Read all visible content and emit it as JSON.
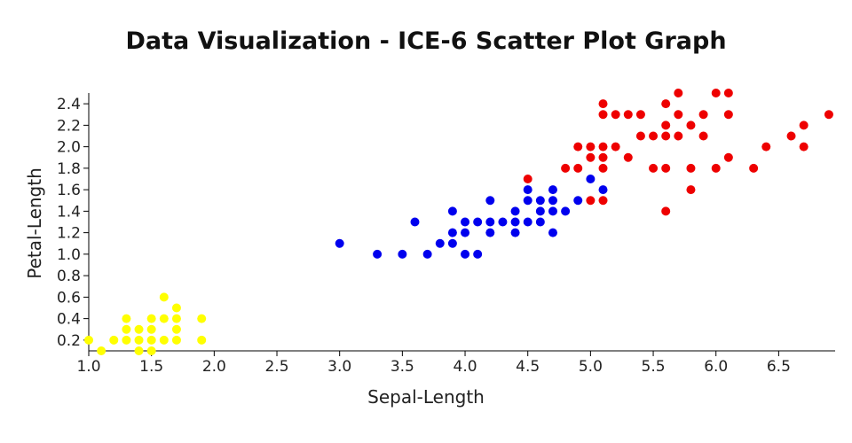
{
  "chart_data": {
    "type": "scatter",
    "title": "Data Visualization - ICE-6 Scatter Plot Graph",
    "xlabel": "Sepal-Length",
    "ylabel": "Petal-Length",
    "xlim": [
      1.0,
      6.95
    ],
    "ylim": [
      0.1,
      2.5
    ],
    "x_ticks": [
      "1.0",
      "1.5",
      "2.0",
      "2.5",
      "3.0",
      "3.5",
      "4.0",
      "4.5",
      "5.0",
      "5.5",
      "6.0",
      "6.5"
    ],
    "y_ticks": [
      "0.2",
      "0.4",
      "0.6",
      "0.8",
      "1.0",
      "1.2",
      "1.4",
      "1.6",
      "1.8",
      "2.0",
      "2.2",
      "2.4"
    ],
    "grid": false,
    "series": [
      {
        "color": "#ffff00",
        "points": [
          [
            1.0,
            0.2
          ],
          [
            1.1,
            0.1
          ],
          [
            1.2,
            0.2
          ],
          [
            1.3,
            0.2
          ],
          [
            1.3,
            0.3
          ],
          [
            1.3,
            0.4
          ],
          [
            1.4,
            0.1
          ],
          [
            1.4,
            0.2
          ],
          [
            1.4,
            0.3
          ],
          [
            1.5,
            0.1
          ],
          [
            1.5,
            0.2
          ],
          [
            1.5,
            0.3
          ],
          [
            1.5,
            0.4
          ],
          [
            1.6,
            0.2
          ],
          [
            1.6,
            0.4
          ],
          [
            1.6,
            0.6
          ],
          [
            1.7,
            0.2
          ],
          [
            1.7,
            0.3
          ],
          [
            1.7,
            0.4
          ],
          [
            1.7,
            0.5
          ],
          [
            1.9,
            0.2
          ],
          [
            1.9,
            0.4
          ]
        ]
      },
      {
        "color": "#0000ee",
        "points": [
          [
            3.0,
            1.1
          ],
          [
            3.3,
            1.0
          ],
          [
            3.5,
            1.0
          ],
          [
            3.6,
            1.3
          ],
          [
            3.7,
            1.0
          ],
          [
            3.8,
            1.1
          ],
          [
            3.9,
            1.1
          ],
          [
            3.9,
            1.2
          ],
          [
            3.9,
            1.4
          ],
          [
            4.0,
            1.0
          ],
          [
            4.0,
            1.2
          ],
          [
            4.0,
            1.3
          ],
          [
            4.1,
            1.0
          ],
          [
            4.1,
            1.3
          ],
          [
            4.2,
            1.2
          ],
          [
            4.2,
            1.3
          ],
          [
            4.2,
            1.5
          ],
          [
            4.3,
            1.3
          ],
          [
            4.4,
            1.2
          ],
          [
            4.4,
            1.3
          ],
          [
            4.4,
            1.4
          ],
          [
            4.5,
            1.3
          ],
          [
            4.5,
            1.5
          ],
          [
            4.5,
            1.6
          ],
          [
            4.6,
            1.3
          ],
          [
            4.6,
            1.4
          ],
          [
            4.6,
            1.5
          ],
          [
            4.7,
            1.2
          ],
          [
            4.7,
            1.4
          ],
          [
            4.7,
            1.5
          ],
          [
            4.7,
            1.6
          ],
          [
            4.8,
            1.4
          ],
          [
            4.9,
            1.5
          ],
          [
            5.0,
            1.7
          ],
          [
            5.1,
            1.6
          ]
        ]
      },
      {
        "color": "#ee0000",
        "points": [
          [
            4.5,
            1.7
          ],
          [
            4.8,
            1.8
          ],
          [
            4.9,
            1.8
          ],
          [
            4.9,
            2.0
          ],
          [
            5.0,
            1.5
          ],
          [
            5.0,
            1.9
          ],
          [
            5.0,
            2.0
          ],
          [
            5.1,
            1.5
          ],
          [
            5.1,
            1.8
          ],
          [
            5.1,
            1.9
          ],
          [
            5.1,
            2.0
          ],
          [
            5.1,
            2.3
          ],
          [
            5.1,
            2.4
          ],
          [
            5.2,
            2.0
          ],
          [
            5.2,
            2.3
          ],
          [
            5.3,
            1.9
          ],
          [
            5.3,
            2.3
          ],
          [
            5.4,
            2.1
          ],
          [
            5.4,
            2.3
          ],
          [
            5.5,
            1.8
          ],
          [
            5.5,
            2.1
          ],
          [
            5.6,
            1.4
          ],
          [
            5.6,
            1.8
          ],
          [
            5.6,
            2.1
          ],
          [
            5.6,
            2.2
          ],
          [
            5.6,
            2.4
          ],
          [
            5.7,
            2.1
          ],
          [
            5.7,
            2.3
          ],
          [
            5.7,
            2.5
          ],
          [
            5.8,
            1.6
          ],
          [
            5.8,
            1.8
          ],
          [
            5.8,
            2.2
          ],
          [
            5.9,
            2.1
          ],
          [
            5.9,
            2.3
          ],
          [
            6.0,
            1.8
          ],
          [
            6.0,
            2.5
          ],
          [
            6.1,
            1.9
          ],
          [
            6.1,
            2.3
          ],
          [
            6.1,
            2.5
          ],
          [
            6.3,
            1.8
          ],
          [
            6.4,
            2.0
          ],
          [
            6.6,
            2.1
          ],
          [
            6.7,
            2.0
          ],
          [
            6.7,
            2.2
          ],
          [
            6.9,
            2.3
          ]
        ]
      }
    ]
  }
}
